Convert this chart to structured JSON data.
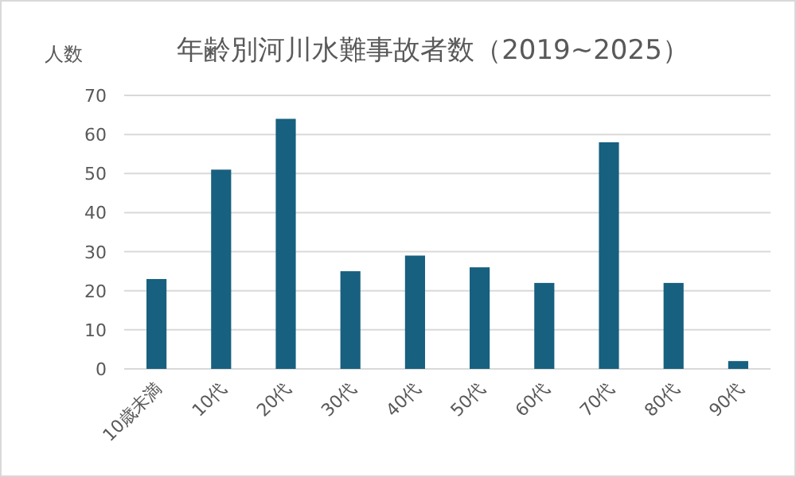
{
  "chart_data": {
    "type": "bar",
    "title": "年齢別河川水難事故者数（2019~2025）",
    "ylabel": "人数",
    "categories": [
      "10歳未満",
      "10代",
      "20代",
      "30代",
      "40代",
      "50代",
      "60代",
      "70代",
      "80代",
      "90代"
    ],
    "values": [
      23,
      51,
      64,
      25,
      29,
      26,
      22,
      58,
      22,
      2
    ],
    "color": "#17607f",
    "ylim": [
      0,
      70
    ],
    "yticks": [
      0,
      10,
      20,
      30,
      40,
      50,
      60,
      70
    ],
    "grid": "y"
  }
}
